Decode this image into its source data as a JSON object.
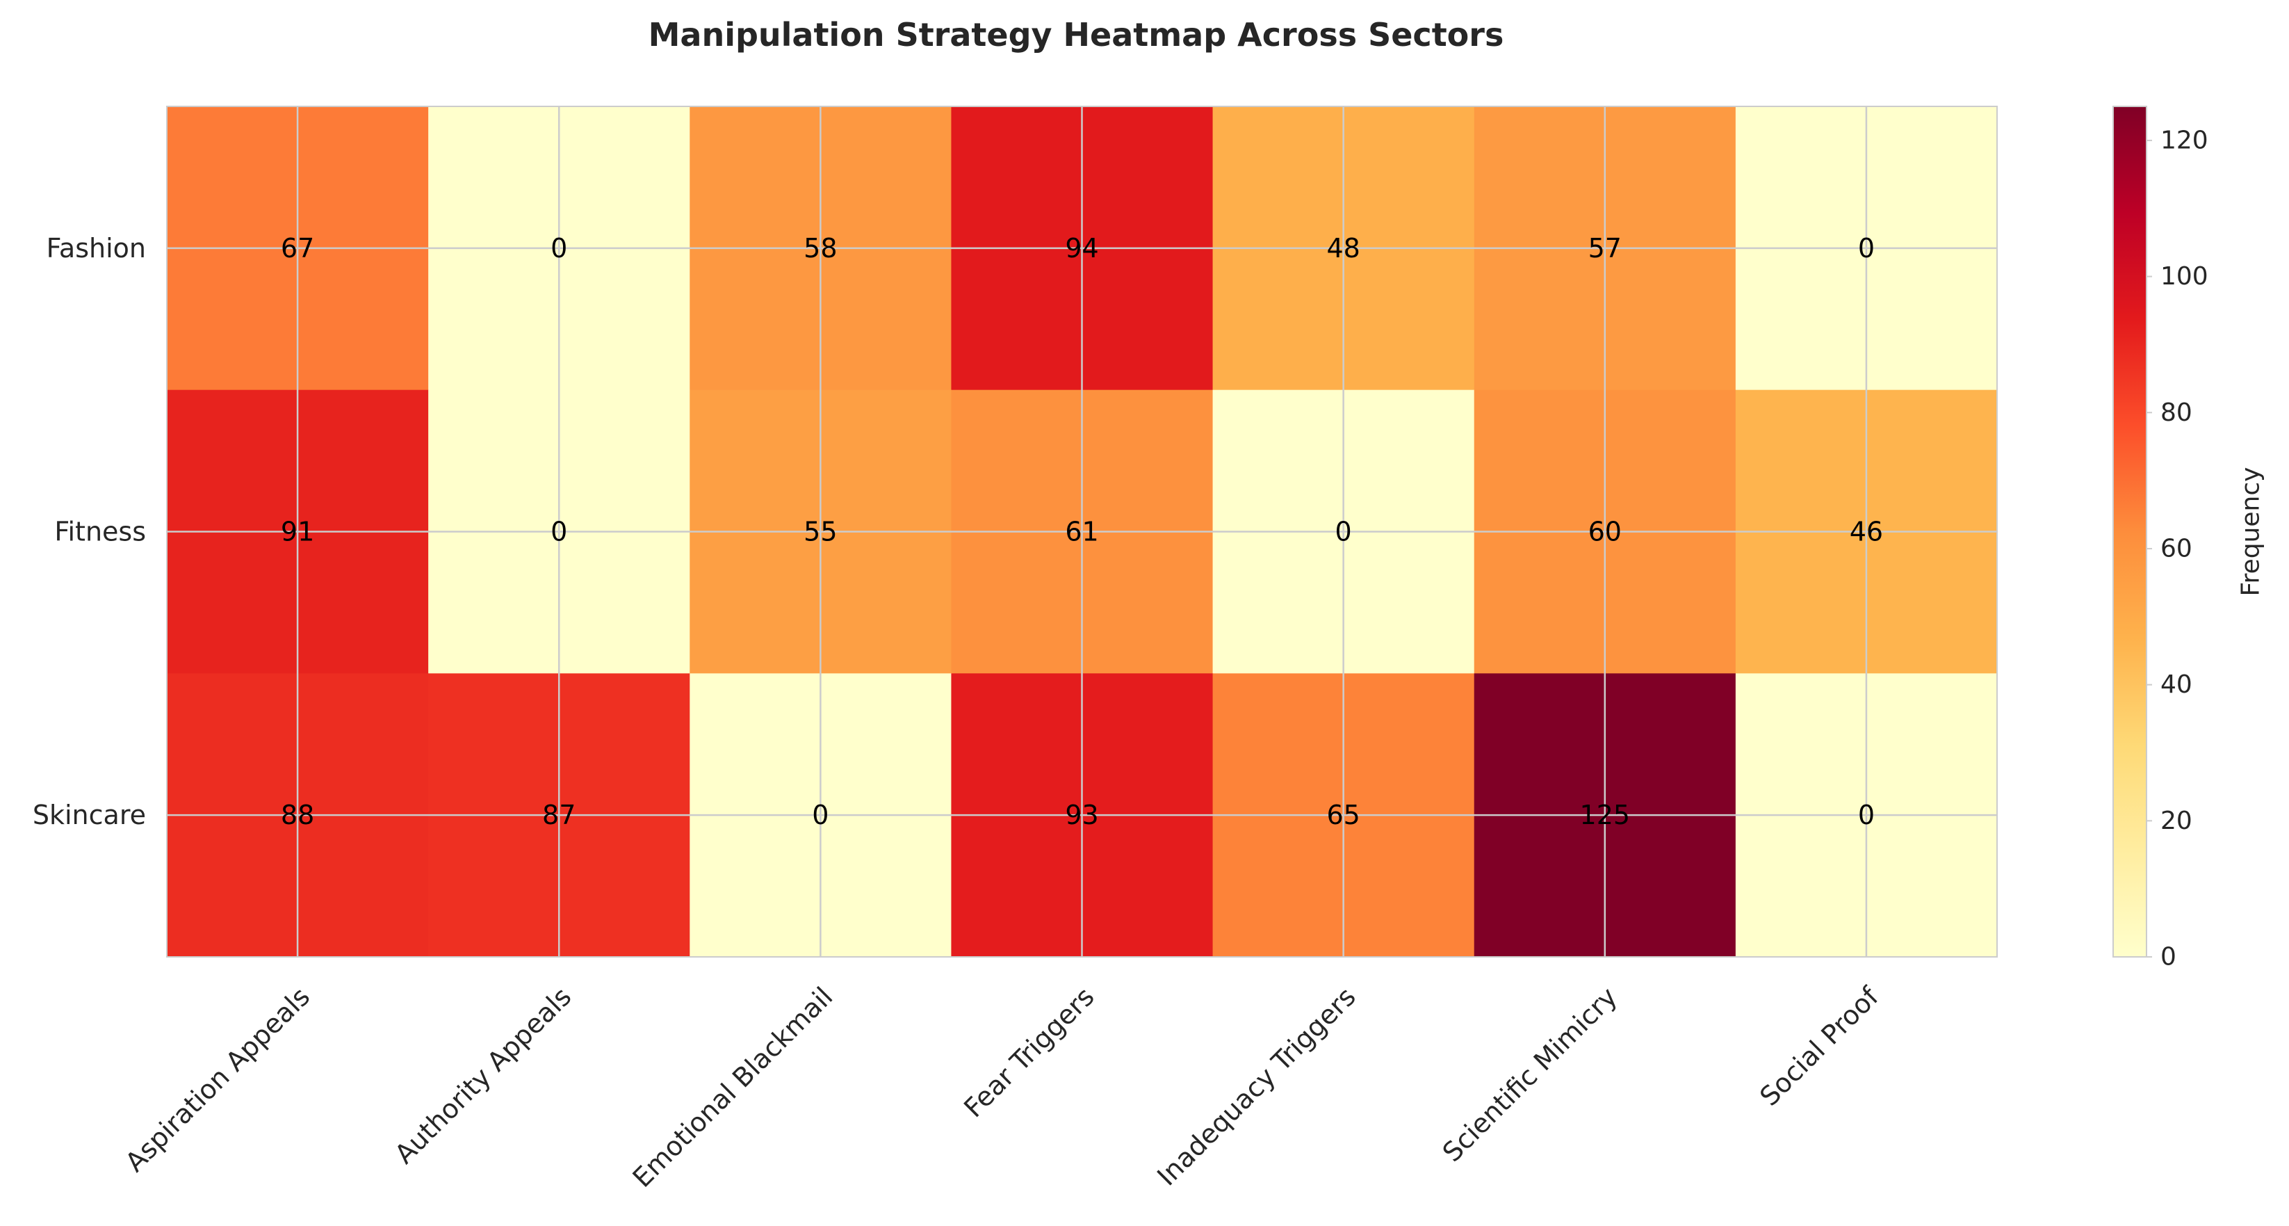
{
  "chart_data": {
    "type": "heatmap",
    "title": "Manipulation Strategy Heatmap Across Sectors",
    "x_categories": [
      "Aspiration Appeals",
      "Authority Appeals",
      "Emotional Blackmail",
      "Fear Triggers",
      "Inadequacy Triggers",
      "Scientific Mimicry",
      "Social Proof"
    ],
    "y_categories": [
      "Fashion",
      "Fitness",
      "Skincare"
    ],
    "values": [
      [
        67,
        0,
        58,
        94,
        48,
        57,
        0
      ],
      [
        91,
        0,
        55,
        61,
        0,
        60,
        46
      ],
      [
        88,
        87,
        0,
        93,
        65,
        125,
        0
      ]
    ],
    "colorbar": {
      "label": "Frequency",
      "range": [
        0,
        125
      ],
      "ticks": [
        0,
        20,
        40,
        60,
        80,
        100,
        120
      ],
      "colormap": "YlOrRd"
    },
    "grid": true,
    "xlabel": "",
    "ylabel": ""
  }
}
